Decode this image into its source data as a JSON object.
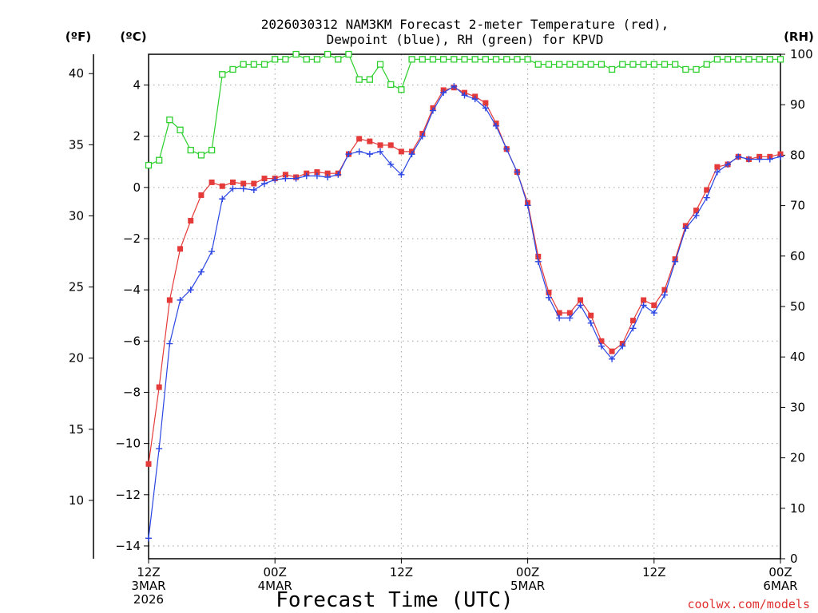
{
  "chart_data": {
    "type": "line",
    "title_lines": [
      "2026030312 NAM3KM Forecast 2-meter Temperature (red),",
      "Dewpoint (blue), RH (green) for KPVD"
    ],
    "xlabel": "Forecast Time (UTC)",
    "credit": "coolwx.com/models",
    "x_range_hours": [
      0,
      60
    ],
    "x_ticks": [
      {
        "hour": 0,
        "lines": [
          "12Z",
          "3MAR",
          "2026"
        ]
      },
      {
        "hour": 12,
        "lines": [
          "00Z",
          "4MAR"
        ]
      },
      {
        "hour": 24,
        "lines": [
          "12Z"
        ]
      },
      {
        "hour": 36,
        "lines": [
          "00Z",
          "5MAR"
        ]
      },
      {
        "hour": 48,
        "lines": [
          "12Z"
        ]
      },
      {
        "hour": 60,
        "lines": [
          "00Z",
          "6MAR"
        ]
      }
    ],
    "y_celsius": {
      "unit_label": "(ºC)",
      "range": [
        -14.5,
        5.2
      ],
      "ticks": [
        -14,
        -12,
        -10,
        -8,
        -6,
        -4,
        -2,
        0,
        2,
        4
      ]
    },
    "y_fahrenheit": {
      "unit_label": "(ºF)",
      "ticks": [
        10,
        15,
        20,
        25,
        30,
        35,
        40
      ]
    },
    "y_rh": {
      "unit_label": "(RH)",
      "range": [
        0,
        100
      ],
      "ticks": [
        0,
        10,
        20,
        30,
        40,
        50,
        60,
        70,
        80,
        90,
        100
      ]
    },
    "grid": true,
    "series": [
      {
        "name": "2-meter Temperature",
        "units": "C",
        "color": "#e53a3a",
        "marker": "filled-square",
        "values": [
          -10.8,
          -7.8,
          -4.4,
          -2.4,
          -1.3,
          -0.3,
          0.2,
          0.05,
          0.2,
          0.15,
          0.15,
          0.35,
          0.35,
          0.5,
          0.4,
          0.55,
          0.6,
          0.55,
          0.55,
          1.3,
          1.9,
          1.8,
          1.65,
          1.65,
          1.4,
          1.4,
          2.1,
          3.1,
          3.8,
          3.9,
          3.7,
          3.55,
          3.3,
          2.5,
          1.5,
          0.6,
          -0.6,
          -2.7,
          -4.1,
          -4.9,
          -4.9,
          -4.4,
          -5.0,
          -6.0,
          -6.4,
          -6.1,
          -5.2,
          -4.4,
          -4.6,
          -4.0,
          -2.8,
          -1.5,
          -0.9,
          -0.1,
          0.8,
          0.9,
          1.2,
          1.1,
          1.2,
          1.2,
          1.3
        ]
      },
      {
        "name": "Dewpoint",
        "units": "C",
        "color": "#2b46e3",
        "marker": "plus",
        "values": [
          -13.7,
          -10.2,
          -6.1,
          -4.4,
          -4.0,
          -3.3,
          -2.5,
          -0.45,
          -0.05,
          -0.05,
          -0.1,
          0.15,
          0.3,
          0.35,
          0.35,
          0.45,
          0.45,
          0.4,
          0.5,
          1.3,
          1.4,
          1.3,
          1.4,
          0.9,
          0.5,
          1.3,
          2.0,
          3.0,
          3.7,
          3.95,
          3.6,
          3.45,
          3.1,
          2.4,
          1.5,
          0.6,
          -0.7,
          -2.9,
          -4.3,
          -5.1,
          -5.1,
          -4.6,
          -5.3,
          -6.2,
          -6.7,
          -6.2,
          -5.5,
          -4.6,
          -4.9,
          -4.2,
          -2.9,
          -1.6,
          -1.1,
          -0.4,
          0.6,
          0.9,
          1.2,
          1.1,
          1.1,
          1.1,
          1.2
        ]
      },
      {
        "name": "RH",
        "units": "%",
        "color": "#2ccf2c",
        "marker": "open-square",
        "values": [
          78,
          79,
          87,
          85,
          81,
          80,
          81,
          96,
          97,
          98,
          98,
          98,
          99,
          99,
          100,
          99,
          99,
          100,
          99,
          100,
          95,
          95,
          98,
          94,
          93,
          99,
          99,
          99,
          99,
          99,
          99,
          99,
          99,
          99,
          99,
          99,
          99,
          98,
          98,
          98,
          98,
          98,
          98,
          98,
          97,
          98,
          98,
          98,
          98,
          98,
          98,
          97,
          97,
          98,
          99,
          99,
          99,
          99,
          99,
          99,
          99
        ]
      }
    ]
  }
}
